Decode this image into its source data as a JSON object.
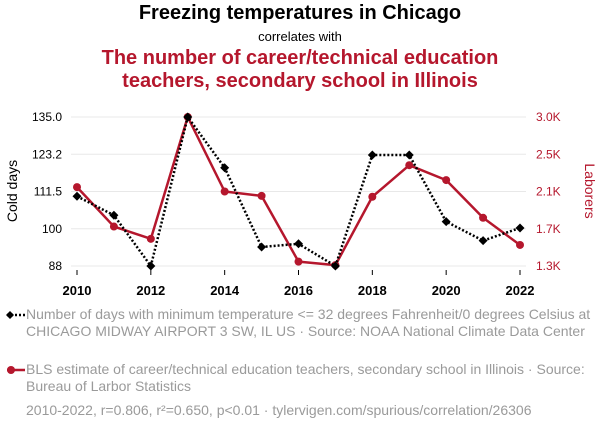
{
  "header": {
    "title": "Freezing temperatures in Chicago",
    "subtitle": "correlates with",
    "title2_line1": "The number of career/technical education",
    "title2_line2": "teachers, secondary school in Illinois"
  },
  "colors": {
    "series1": "#000000",
    "series2": "#b5172d",
    "grid": "#e8e8e8",
    "legend_text": "#9a9a9a"
  },
  "chart_data": {
    "type": "line",
    "x": [
      2010,
      2011,
      2012,
      2013,
      2014,
      2015,
      2016,
      2017,
      2018,
      2019,
      2020,
      2021,
      2022
    ],
    "xticks": [
      "2010",
      "2012",
      "2014",
      "2016",
      "2018",
      "2020",
      "2022"
    ],
    "ylabel_left": "Cold days",
    "ylabel_right": "Laborers",
    "ylim_left": [
      88,
      135
    ],
    "yticks_left": [
      "135.0",
      "123.2",
      "111.5",
      "100",
      "88"
    ],
    "yticks_left_values": [
      135,
      123.25,
      111.5,
      99.75,
      88
    ],
    "ylim_right": [
      1300,
      3000
    ],
    "yticks_right": [
      "3.0K",
      "2.5K",
      "2.1K",
      "1.7K",
      "1.3K"
    ],
    "yticks_right_values": [
      3000,
      2575,
      2150,
      1725,
      1300
    ],
    "series": [
      {
        "name": "Number of days with minimum temperature <= 32 degrees Fahrenheit/0 degrees Celsius at CHICAGO MIDWAY AIRPORT 3 SW, IL US · Source: NOAA National Climate Data Center",
        "axis": "left",
        "style": "dotted",
        "marker": "diamond",
        "values": [
          110,
          104,
          88,
          135,
          119,
          94,
          95,
          88,
          123,
          123,
          102,
          96,
          100
        ]
      },
      {
        "name": "BLS estimate of career/technical education teachers, secondary school in Illinois · Source: Bureau of Larbor Statistics",
        "axis": "right",
        "style": "solid",
        "marker": "circle",
        "values": [
          2200,
          1750,
          1610,
          3000,
          2150,
          2100,
          1350,
          1310,
          2090,
          2450,
          2280,
          1850,
          1540
        ]
      }
    ]
  },
  "legend": {
    "item1": "Number of days with minimum temperature <= 32 degrees Fahrenheit/0 degrees Celsius at CHICAGO MIDWAY AIRPORT 3 SW, IL US · Source: NOAA National Climate Data Center",
    "item2": "BLS estimate of career/technical education teachers, secondary school in Illinois · Source: Bureau of Larbor Statistics"
  },
  "footer": "2010-2022, r=0.806, r²=0.650, p<0.01 · tylervigen.com/spurious/correlation/26306"
}
